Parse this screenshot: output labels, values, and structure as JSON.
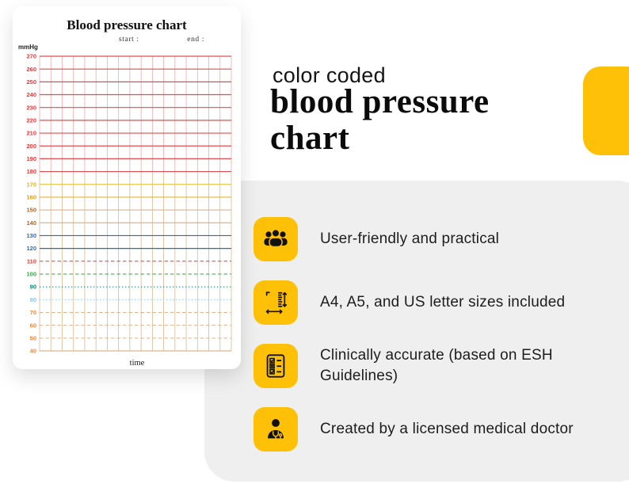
{
  "hero": {
    "eyebrow": "color coded",
    "title_line1": "blood pressure",
    "title_line2": "chart",
    "accent_color": "#FFC107"
  },
  "features": {
    "panel_color": "#EFEFEF",
    "icon_bg": "#FFC107",
    "items": [
      {
        "icon": "users-icon",
        "text": "User-friendly and practical"
      },
      {
        "icon": "paper-sizes-icon",
        "text": "A4, A5, and US letter sizes included"
      },
      {
        "icon": "checklist-icon",
        "text": "Clinically accurate (based on ESH Guidelines)"
      },
      {
        "icon": "doctor-icon",
        "text": "Created by a licensed medical doctor"
      }
    ]
  },
  "chart_data": {
    "type": "grid",
    "title": "Blood pressure chart",
    "start_label": "start :",
    "end_label": "end :",
    "y_axis_label": "mmHg",
    "x_axis_label": "time",
    "columns": 17,
    "y_ticks": [
      270,
      260,
      250,
      240,
      230,
      220,
      210,
      200,
      190,
      180,
      170,
      160,
      150,
      140,
      130,
      120,
      110,
      100,
      90,
      80,
      70,
      60,
      50,
      40
    ],
    "rows": [
      {
        "value": 270,
        "label_color": "#e23b3b",
        "line_color": "#e04f4f",
        "style": "solid"
      },
      {
        "value": 260,
        "label_color": "#e23b3b",
        "line_color": "#e04f4f",
        "style": "solid"
      },
      {
        "value": 250,
        "label_color": "#e23b3b",
        "line_color": "#e04f4f",
        "style": "solid"
      },
      {
        "value": 240,
        "label_color": "#e23b3b",
        "line_color": "#e04f4f",
        "style": "solid"
      },
      {
        "value": 230,
        "label_color": "#e23b3b",
        "line_color": "#e04f4f",
        "style": "solid"
      },
      {
        "value": 220,
        "label_color": "#e23b3b",
        "line_color": "#e04f4f",
        "style": "solid"
      },
      {
        "value": 210,
        "label_color": "#e23b3b",
        "line_color": "#e04f4f",
        "style": "solid"
      },
      {
        "value": 200,
        "label_color": "#e23b3b",
        "line_color": "#e04f4f",
        "style": "solid"
      },
      {
        "value": 190,
        "label_color": "#e23b3b",
        "line_color": "#e04f4f",
        "style": "solid"
      },
      {
        "value": 180,
        "label_color": "#e23b3b",
        "line_color": "#e04f4f",
        "style": "solid"
      },
      {
        "value": 170,
        "label_color": "#e0b514",
        "line_color": "#e5c645",
        "style": "solid"
      },
      {
        "value": 160,
        "label_color": "#dd9c17",
        "line_color": "#e2b23c",
        "style": "solid"
      },
      {
        "value": 150,
        "label_color": "#a4682f",
        "line_color": "#d9b48f",
        "style": "solid"
      },
      {
        "value": 140,
        "label_color": "#a4682f",
        "line_color": "#d9b48f",
        "style": "solid"
      },
      {
        "value": 130,
        "label_color": "#2f6bb0",
        "line_color": "#2f6bb0",
        "style": "solid"
      },
      {
        "value": 120,
        "label_color": "#2f6bb0",
        "line_color": "#2f6bb0",
        "style": "solid"
      },
      {
        "value": 110,
        "label_color": "#e23b3b",
        "line_color": "#e23b3b",
        "style": "dashed"
      },
      {
        "value": 100,
        "label_color": "#3da04a",
        "line_color": "#3da04a",
        "style": "dashed"
      },
      {
        "value": 90,
        "label_color": "#0e7f74",
        "line_color": "#0e7f74",
        "style": "dotted"
      },
      {
        "value": 80,
        "label_color": "#8fc3e8",
        "line_color": "#8fc3e8",
        "style": "dotted"
      },
      {
        "value": 70,
        "label_color": "#e28a46",
        "line_color": "#d9b48f",
        "style": "dashed"
      },
      {
        "value": 60,
        "label_color": "#e28a46",
        "line_color": "#d9b48f",
        "style": "dashed"
      },
      {
        "value": 50,
        "label_color": "#e28a46",
        "line_color": "#d9b48f",
        "style": "dashed"
      },
      {
        "value": 40,
        "label_color": "#e28a46",
        "line_color": "#d9b48f",
        "style": "solid"
      }
    ],
    "vertical_zones": [
      {
        "from": 270,
        "to": 180,
        "color": "#f0aaaa"
      },
      {
        "from": 180,
        "to": 40,
        "color": "#dcb892"
      }
    ]
  }
}
